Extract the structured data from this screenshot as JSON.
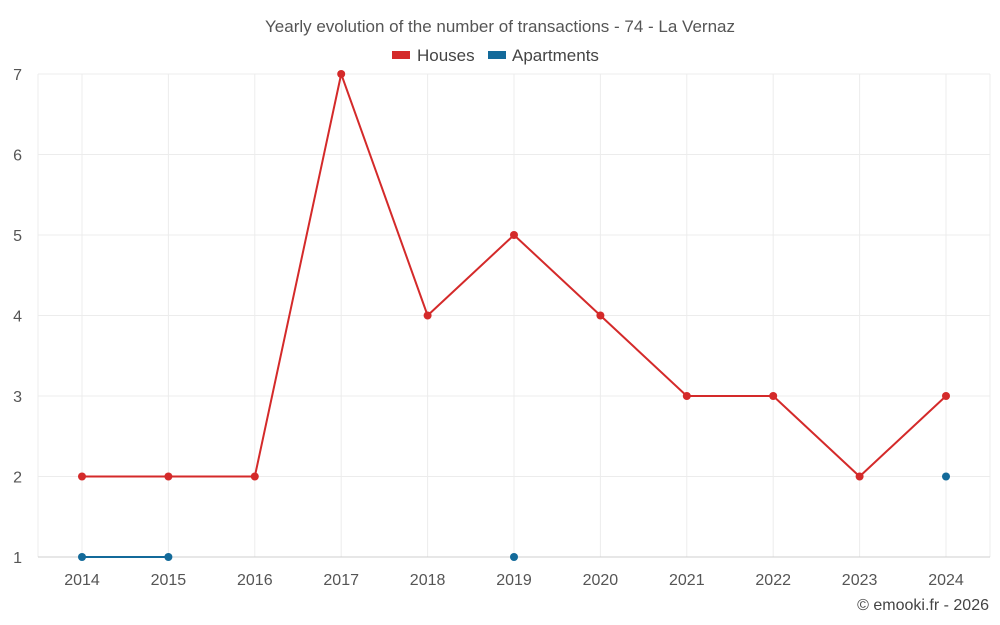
{
  "chart_data": {
    "type": "line",
    "title": "Yearly evolution of the number of transactions - 74 - La Vernaz",
    "categories": [
      "2014",
      "2015",
      "2016",
      "2017",
      "2018",
      "2019",
      "2020",
      "2021",
      "2022",
      "2023",
      "2024"
    ],
    "series": [
      {
        "name": "Houses",
        "color": "#d42a2a",
        "values": [
          2,
          2,
          2,
          7,
          4,
          5,
          4,
          3,
          3,
          2,
          3
        ]
      },
      {
        "name": "Apartments",
        "color": "#136a9a",
        "values": [
          1,
          1,
          null,
          null,
          null,
          1,
          null,
          null,
          null,
          null,
          2
        ]
      }
    ],
    "y_ticks": [
      "1",
      "2",
      "3",
      "4",
      "5",
      "6",
      "7"
    ],
    "ylim": [
      1,
      7
    ],
    "xlabel": "",
    "ylabel": "",
    "grid": true,
    "legend_position": "top-center"
  },
  "credit": "© emooki.fr - 2026"
}
